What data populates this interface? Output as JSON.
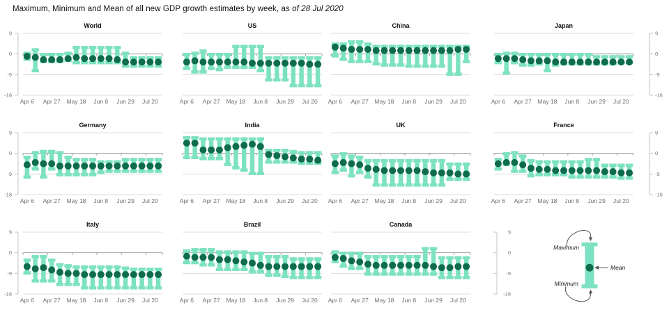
{
  "title": {
    "text": "Maximum, Minimum and Mean of all new GDP growth estimates by week, as",
    "italic": " of 28 Jul 2020"
  },
  "colors": {
    "bar": "#7DE2C1",
    "dot": "#0E6B4E",
    "grid": "#DCDCDC",
    "zero_axis": "#9E9E9E",
    "scale_line": "#C4C4C4",
    "axis_text": "#7A7A7A",
    "arrow": "#555555"
  },
  "y_axis": {
    "ticks": [
      9,
      0,
      -9,
      -18
    ],
    "max": 9,
    "min": -18
  },
  "x_axis": {
    "tick_labels": [
      "Apr 6",
      "Apr 27",
      "May 18",
      "Jun 8",
      "Jun 29",
      "Jul 20"
    ],
    "tick_week_indexes": [
      0,
      3,
      6,
      9,
      12,
      15
    ],
    "weeks": [
      "Apr 6",
      "Apr 13",
      "Apr 20",
      "Apr 27",
      "May 4",
      "May 11",
      "May 18",
      "May 25",
      "Jun 1",
      "Jun 8",
      "Jun 15",
      "Jun 22",
      "Jun 29",
      "Jul 6",
      "Jul 13",
      "Jul 20",
      "Jul 27"
    ]
  },
  "chart_data": [
    {
      "type": "range-bar-with-mean",
      "name": "World",
      "row": 0,
      "col": 0,
      "scale": "left",
      "mean": [
        -1,
        -1.5,
        -2.5,
        -2.5,
        -2.5,
        -2,
        -1.5,
        -2,
        -2,
        -2,
        -2,
        -2.5,
        -3.5,
        -3.5,
        -3.5,
        -3.5,
        -3.5
      ],
      "max": [
        1,
        2.5,
        0.5,
        0.5,
        0.5,
        1,
        3.5,
        3.5,
        3.5,
        3.5,
        3.5,
        3.5,
        1,
        -1,
        -1,
        -1,
        -1
      ],
      "min": [
        -3,
        -8,
        -4,
        -4,
        -4,
        -3.5,
        -4.5,
        -4.5,
        -4.5,
        -4.5,
        -4.5,
        -4.5,
        -6,
        -6,
        -6,
        -6,
        -6
      ]
    },
    {
      "type": "range-bar-with-mean",
      "name": "US",
      "row": 0,
      "col": 1,
      "scale": null,
      "mean": [
        -3.5,
        -3,
        -3.5,
        -3.5,
        -3.5,
        -3.5,
        -3.5,
        -3.5,
        -4,
        -4,
        -4,
        -4,
        -4,
        -4,
        -4,
        -4.5,
        -4.5
      ],
      "max": [
        0.5,
        1,
        2,
        0.5,
        0.5,
        0.5,
        4,
        4,
        4,
        4,
        -1,
        -1,
        -1,
        -1,
        -1,
        -1,
        -1
      ],
      "min": [
        -7,
        -8.5,
        -8.5,
        -7,
        -7.5,
        -6.5,
        -6.5,
        -6.5,
        -6.5,
        -8,
        -12,
        -12,
        -12,
        -14.5,
        -14.5,
        -14.5,
        -14.5
      ]
    },
    {
      "type": "range-bar-with-mean",
      "name": "China",
      "row": 0,
      "col": 2,
      "scale": null,
      "mean": [
        3,
        2.5,
        2,
        2,
        2,
        1.5,
        1.5,
        1.5,
        1.5,
        1.5,
        1.5,
        1.5,
        1.5,
        1.5,
        1.5,
        2,
        2
      ],
      "max": [
        5,
        5,
        6,
        6,
        5,
        4,
        4,
        4,
        4,
        4,
        4,
        4,
        4,
        4,
        4,
        4,
        4
      ],
      "min": [
        -1.5,
        -3,
        -4,
        -4,
        -4,
        -5,
        -5.5,
        -5.5,
        -5.5,
        -6,
        -6,
        -6,
        -6,
        -6,
        -9.5,
        -9.5,
        -4
      ]
    },
    {
      "type": "range-bar-with-mean",
      "name": "Japan",
      "row": 0,
      "col": 3,
      "scale": "right",
      "mean": [
        -2,
        -2,
        -2,
        -2.5,
        -3,
        -3,
        -3,
        -3.5,
        -3.5,
        -3.5,
        -3.5,
        -3.5,
        -3.5,
        -3.5,
        -3.5,
        -3.5,
        -3.5
      ],
      "max": [
        0.5,
        1,
        1,
        0.5,
        0.5,
        0.5,
        0.5,
        0.5,
        0.5,
        0.5,
        0.5,
        0.5,
        -0.5,
        -0.5,
        -0.5,
        -0.5,
        -0.5
      ],
      "min": [
        -4.5,
        -9,
        -4.5,
        -5.5,
        -5.5,
        -5,
        -8,
        -5.5,
        -5,
        -5,
        -5,
        -5,
        -5,
        -5,
        -5,
        -4.5,
        -4.5
      ]
    },
    {
      "type": "range-bar-with-mean",
      "name": "Germany",
      "row": 1,
      "col": 0,
      "scale": "left",
      "mean": [
        -5,
        -4,
        -4.5,
        -4.5,
        -5.5,
        -5.5,
        -5.5,
        -5.5,
        -5.5,
        -5.5,
        -5.5,
        -5.5,
        -5.5,
        -5.5,
        -5.5,
        -5.5,
        -5.5
      ],
      "max": [
        -1,
        1,
        1.5,
        1.5,
        1,
        -1,
        -2,
        -2,
        -2,
        -3,
        -3,
        -3,
        -2,
        -2,
        -2,
        -2,
        -2
      ],
      "min": [
        -11,
        -7.5,
        -11,
        -7.5,
        -10,
        -10,
        -10,
        -10,
        -10,
        -9,
        -8.5,
        -8.5,
        -8.5,
        -8.5,
        -8.5,
        -8.5,
        -8.5
      ]
    },
    {
      "type": "range-bar-with-mean",
      "name": "India",
      "row": 1,
      "col": 1,
      "scale": null,
      "mean": [
        4.5,
        4.5,
        1.5,
        1.5,
        1.5,
        2.5,
        3,
        3.5,
        4,
        3,
        -0.5,
        -1,
        -1.5,
        -2,
        -2.5,
        -2.5,
        -3
      ],
      "max": [
        7.5,
        7.5,
        7,
        7,
        7,
        7,
        7,
        7,
        7,
        7,
        2,
        2,
        2,
        1.5,
        1,
        1,
        1
      ],
      "min": [
        -2.5,
        -2.5,
        -3,
        -3,
        -3,
        -5.5,
        -7,
        -8,
        -9.5,
        -9.5,
        -4.5,
        -4.5,
        -4.5,
        -4.5,
        -5,
        -5,
        -5
      ]
    },
    {
      "type": "range-bar-with-mean",
      "name": "UK",
      "row": 1,
      "col": 2,
      "scale": null,
      "mean": [
        -4.5,
        -4,
        -4.5,
        -5,
        -6.5,
        -7,
        -7.5,
        -7.5,
        -7.5,
        -7.5,
        -7.5,
        -8,
        -8.5,
        -8.5,
        -8.5,
        -9,
        -9
      ],
      "max": [
        -0.5,
        0.5,
        -0.5,
        -1,
        -2.5,
        -2.5,
        -2.5,
        -2.5,
        -2.5,
        -2.5,
        -2.5,
        -2.5,
        -2.5,
        -2.5,
        -4,
        -4,
        -4
      ],
      "min": [
        -9,
        -8,
        -10.5,
        -9,
        -11,
        -14.5,
        -14.5,
        -14.5,
        -14.5,
        -14.5,
        -14.5,
        -14.5,
        -14.5,
        -14.5,
        -12,
        -12,
        -12
      ]
    },
    {
      "type": "range-bar-with-mean",
      "name": "France",
      "row": 1,
      "col": 3,
      "scale": "right",
      "mean": [
        -4.5,
        -4,
        -4,
        -5,
        -6.5,
        -7,
        -7,
        -7.5,
        -7.5,
        -7.5,
        -7.5,
        -7.5,
        -7.5,
        -8,
        -8,
        -8.5,
        -8.5
      ],
      "max": [
        -2,
        0.5,
        1,
        -0.5,
        -2.5,
        -3,
        -3,
        -3,
        -3,
        -3,
        -3,
        -2,
        -2,
        -4.5,
        -4.5,
        -4.5,
        -4.5
      ],
      "min": [
        -7.5,
        -5.5,
        -8.5,
        -8.5,
        -10.5,
        -10,
        -10,
        -10,
        -10,
        -11,
        -11,
        -11,
        -11,
        -11,
        -11,
        -11.5,
        -11.5
      ]
    },
    {
      "type": "range-bar-with-mean",
      "name": "Italy",
      "row": 2,
      "col": 0,
      "scale": "left",
      "mean": [
        -6,
        -7,
        -6.5,
        -7.5,
        -8.5,
        -9,
        -9,
        -9.5,
        -9.5,
        -9.5,
        -9.5,
        -9.5,
        -9.5,
        -9.5,
        -9.5,
        -9.5,
        -9.5
      ],
      "max": [
        -2.5,
        -1,
        -1,
        -2.5,
        -4.5,
        -5,
        -5.5,
        -5.5,
        -5.5,
        -5.5,
        -5.5,
        -5.5,
        -6,
        -6.5,
        -6.5,
        -6.5,
        -6.5
      ],
      "min": [
        -9.5,
        -13,
        -13,
        -13,
        -14.5,
        -14.5,
        -14.5,
        -16,
        -16,
        -16,
        -16,
        -16,
        -16,
        -16,
        -16,
        -16,
        -16
      ]
    },
    {
      "type": "range-bar-with-mean",
      "name": "Brazil",
      "row": 2,
      "col": 1,
      "scale": null,
      "mean": [
        -1.5,
        -2,
        -2,
        -2,
        -3,
        -3,
        -3.5,
        -4,
        -4.5,
        -5.5,
        -6,
        -6,
        -6,
        -6,
        -6,
        -6,
        -6
      ],
      "max": [
        1.5,
        2,
        2,
        2,
        1,
        1,
        1,
        1,
        0.5,
        0.5,
        -1,
        -1,
        -1,
        -2,
        -2,
        -2,
        -2
      ],
      "min": [
        -5,
        -5,
        -6,
        -6,
        -8,
        -8,
        -8,
        -8,
        -9,
        -9,
        -10.5,
        -10.5,
        -11,
        -11.5,
        -11.5,
        -11.5,
        -11.5
      ]
    },
    {
      "type": "range-bar-with-mean",
      "name": "Canada",
      "row": 2,
      "col": 2,
      "scale": null,
      "mean": [
        -2,
        -2.5,
        -3.5,
        -4,
        -5,
        -5.5,
        -5.5,
        -5.5,
        -5.5,
        -5.5,
        -5.5,
        -5.5,
        -6,
        -6.5,
        -6.5,
        -6,
        -6
      ],
      "max": [
        1,
        0.5,
        0.5,
        0.5,
        -1,
        -1,
        -1,
        -1,
        -1,
        -1,
        -1,
        2.5,
        2.5,
        -1.5,
        -1.5,
        -1.5,
        -1.5
      ],
      "min": [
        -4.5,
        -6.5,
        -7.5,
        -7.5,
        -10,
        -10,
        -10,
        -10,
        -10,
        -10,
        -10,
        -10,
        -10,
        -11.5,
        -11.5,
        -11.5,
        -11.5
      ]
    }
  ],
  "legend": {
    "labels": {
      "maximum": "Maximum",
      "mean": "Mean",
      "minimum": "Minimum"
    },
    "glyph": {
      "max": 4.5,
      "mean": -6.5,
      "min": -15.5
    },
    "y_ticks": [
      9,
      0,
      -9,
      -18
    ]
  }
}
